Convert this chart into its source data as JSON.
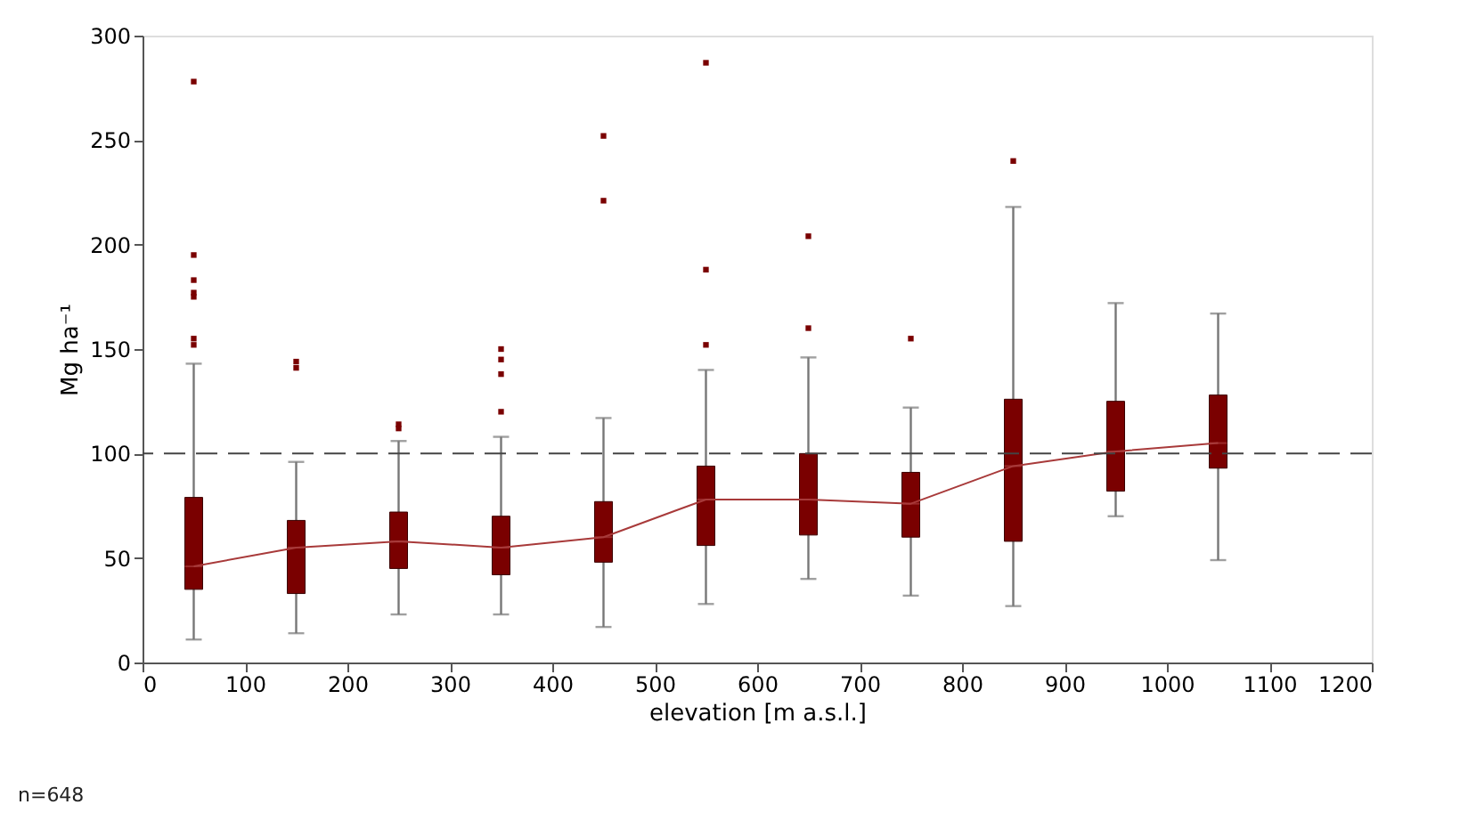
{
  "chart_data": {
    "type": "box",
    "xlabel": "elevation  [m  a.s.l.]",
    "ylabel": "Mg ha⁻¹",
    "x": [
      50,
      150,
      250,
      350,
      450,
      550,
      650,
      750,
      850,
      950,
      1050
    ],
    "xlim": [
      0,
      1200
    ],
    "xticks": [
      0,
      100,
      200,
      300,
      400,
      500,
      600,
      700,
      800,
      900,
      1000,
      1100,
      1200
    ],
    "ylim": [
      0,
      300
    ],
    "yticks": [
      0,
      50,
      100,
      150,
      200,
      250,
      300
    ],
    "grid": false,
    "series": [
      {
        "color": "#7a0000",
        "boxes": [
          {
            "low": 11,
            "q1": 35,
            "median": 46,
            "q3": 79,
            "high": 143,
            "outliers": [
              152,
              155,
              175,
              177,
              183,
              195,
              278
            ]
          },
          {
            "low": 14,
            "q1": 33,
            "median": 55,
            "q3": 68,
            "high": 96,
            "outliers": [
              141,
              144
            ]
          },
          {
            "low": 23,
            "q1": 45,
            "median": 58,
            "q3": 72,
            "high": 106,
            "outliers": [
              112,
              114
            ]
          },
          {
            "low": 23,
            "q1": 42,
            "median": 55,
            "q3": 70,
            "high": 108,
            "outliers": [
              120,
              138,
              145,
              150
            ]
          },
          {
            "low": 17,
            "q1": 48,
            "median": 60,
            "q3": 77,
            "high": 117,
            "outliers": [
              221,
              252
            ]
          },
          {
            "low": 28,
            "q1": 56,
            "median": 78,
            "q3": 94,
            "high": 140,
            "outliers": [
              152,
              188,
              287
            ]
          },
          {
            "low": 40,
            "q1": 61,
            "median": 78,
            "q3": 100,
            "high": 146,
            "outliers": [
              160,
              204
            ]
          },
          {
            "low": 32,
            "q1": 60,
            "median": 76,
            "q3": 91,
            "high": 122,
            "outliers": [
              155
            ]
          },
          {
            "low": 27,
            "q1": 58,
            "median": 94,
            "q3": 126,
            "high": 218,
            "outliers": [
              240
            ]
          },
          {
            "low": 70,
            "q1": 82,
            "median": 101,
            "q3": 125,
            "high": 172
          },
          {
            "low": 49,
            "q1": 93,
            "median": 105,
            "q3": 128,
            "high": 167
          }
        ]
      },
      {
        "type": "line",
        "color": "#a83a3a",
        "values": [
          46,
          55,
          58,
          55,
          60,
          78,
          78,
          76,
          94,
          101,
          105
        ]
      }
    ],
    "ref_lines": [
      {
        "axis": "y",
        "value": 100,
        "color": "#444444",
        "line_style": "dashed"
      }
    ],
    "annotations": [
      "n=648"
    ]
  }
}
